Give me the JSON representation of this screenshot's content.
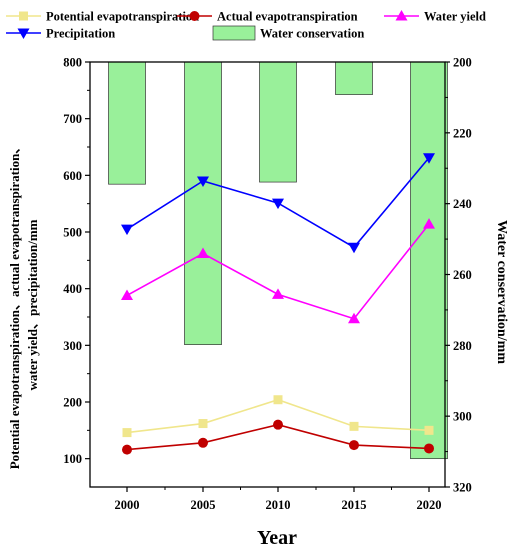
{
  "chart_data": {
    "type": "line",
    "x": [
      2000,
      2005,
      2010,
      2015,
      2020
    ],
    "x_ticks": [
      "2000",
      "2005",
      "2010",
      "2015",
      "2020"
    ],
    "xlabel": "Year",
    "ylabel_left": [
      "Potential evapotranspiration、actual evapotranspiration、",
      "water yield、precipitation/mm"
    ],
    "ylabel_right": "Water conservation/mm",
    "ylim_left": [
      50,
      800
    ],
    "ylim_right": [
      320,
      200
    ],
    "yticks_left": [
      "100",
      "200",
      "300",
      "400",
      "500",
      "600",
      "700",
      "800"
    ],
    "yticks_right": [
      "200",
      "220",
      "240",
      "260",
      "280",
      "300",
      "320"
    ],
    "legend_placement": "top",
    "series": [
      {
        "name": "Potential evapotranspiration",
        "values": [
          146,
          162,
          204,
          157,
          150
        ],
        "color": "#f0e68c",
        "marker": "square",
        "axis": "left"
      },
      {
        "name": "Actual evapotranspiration",
        "values": [
          116,
          128,
          160,
          124,
          118
        ],
        "color": "#c00000",
        "marker": "circle",
        "axis": "left"
      },
      {
        "name": "Water yield",
        "values": [
          388,
          462,
          390,
          347,
          514
        ],
        "color": "#ff00ff",
        "marker": "triangle-up",
        "axis": "left"
      },
      {
        "name": "Precipitation",
        "values": [
          505,
          590,
          551,
          473,
          631
        ],
        "color": "#0000ff",
        "marker": "triangle-down",
        "axis": "left"
      },
      {
        "name": "Water conservation",
        "values": [
          234.5,
          279.8,
          233.9,
          209.2,
          312.0
        ],
        "color": "#99f09a",
        "type": "bar",
        "axis": "right"
      }
    ]
  }
}
